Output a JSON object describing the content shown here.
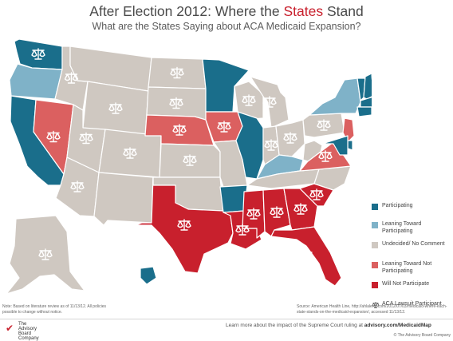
{
  "header": {
    "title_prefix": "After Election 2012: Where the ",
    "title_highlight": "States",
    "title_suffix": " Stand",
    "subtitle": "What are the States Saying about ACA Medicaid Expansion?"
  },
  "colors": {
    "participating": "#1a6e8b",
    "leaning_participating": "#7fb2c8",
    "undecided": "#cfc8c1",
    "leaning_not": "#db6060",
    "will_not": "#c8202d",
    "title_accent": "#c8202d"
  },
  "legend": [
    {
      "key": "participating",
      "label": "Participating"
    },
    {
      "key": "leaning_participating",
      "label": "Leaning Toward Participating"
    },
    {
      "key": "undecided",
      "label": "Undecided/ No Comment"
    },
    {
      "key": "leaning_not",
      "label": "Leaning Toward Not Participating"
    },
    {
      "key": "will_not",
      "label": "Will Not Participate"
    }
  ],
  "legend_lawsuit": {
    "icon": "scales-icon",
    "label": "ACA Lawsuit Participant"
  },
  "map": {
    "type": "choropleth",
    "regions": [
      {
        "name": "WA",
        "status": "participating",
        "lawsuit": true
      },
      {
        "name": "OR",
        "status": "leaning_participating",
        "lawsuit": false
      },
      {
        "name": "CA",
        "status": "participating",
        "lawsuit": false
      },
      {
        "name": "NV",
        "status": "leaning_not",
        "lawsuit": true
      },
      {
        "name": "ID",
        "status": "undecided",
        "lawsuit": true
      },
      {
        "name": "MT",
        "status": "undecided",
        "lawsuit": false
      },
      {
        "name": "WY",
        "status": "undecided",
        "lawsuit": true
      },
      {
        "name": "UT",
        "status": "undecided",
        "lawsuit": true
      },
      {
        "name": "AZ",
        "status": "undecided",
        "lawsuit": true
      },
      {
        "name": "CO",
        "status": "undecided",
        "lawsuit": true
      },
      {
        "name": "NM",
        "status": "undecided",
        "lawsuit": false
      },
      {
        "name": "ND",
        "status": "undecided",
        "lawsuit": true
      },
      {
        "name": "SD",
        "status": "undecided",
        "lawsuit": true
      },
      {
        "name": "NE",
        "status": "leaning_not",
        "lawsuit": true
      },
      {
        "name": "KS",
        "status": "undecided",
        "lawsuit": true
      },
      {
        "name": "OK",
        "status": "undecided",
        "lawsuit": false
      },
      {
        "name": "TX",
        "status": "will_not",
        "lawsuit": true
      },
      {
        "name": "MN",
        "status": "participating",
        "lawsuit": false
      },
      {
        "name": "IA",
        "status": "leaning_not",
        "lawsuit": true
      },
      {
        "name": "MO",
        "status": "undecided",
        "lawsuit": false
      },
      {
        "name": "AR",
        "status": "participating",
        "lawsuit": false
      },
      {
        "name": "LA",
        "status": "will_not",
        "lawsuit": true
      },
      {
        "name": "WI",
        "status": "undecided",
        "lawsuit": true
      },
      {
        "name": "IL",
        "status": "participating",
        "lawsuit": false
      },
      {
        "name": "MI",
        "status": "undecided",
        "lawsuit": true
      },
      {
        "name": "IN",
        "status": "undecided",
        "lawsuit": true
      },
      {
        "name": "OH",
        "status": "undecided",
        "lawsuit": true
      },
      {
        "name": "KY",
        "status": "leaning_participating",
        "lawsuit": false
      },
      {
        "name": "TN",
        "status": "undecided",
        "lawsuit": false
      },
      {
        "name": "MS",
        "status": "will_not",
        "lawsuit": true
      },
      {
        "name": "AL",
        "status": "will_not",
        "lawsuit": true
      },
      {
        "name": "GA",
        "status": "will_not",
        "lawsuit": true
      },
      {
        "name": "FL",
        "status": "will_not",
        "lawsuit": true
      },
      {
        "name": "SC",
        "status": "will_not",
        "lawsuit": true
      },
      {
        "name": "NC",
        "status": "undecided",
        "lawsuit": false
      },
      {
        "name": "VA",
        "status": "leaning_not",
        "lawsuit": true
      },
      {
        "name": "WV",
        "status": "undecided",
        "lawsuit": false
      },
      {
        "name": "PA",
        "status": "undecided",
        "lawsuit": true
      },
      {
        "name": "NY",
        "status": "leaning_participating",
        "lawsuit": false
      },
      {
        "name": "NJ",
        "status": "leaning_not",
        "lawsuit": false
      },
      {
        "name": "DE",
        "status": "participating",
        "lawsuit": false
      },
      {
        "name": "MD",
        "status": "participating",
        "lawsuit": false
      },
      {
        "name": "VT",
        "status": "participating",
        "lawsuit": false
      },
      {
        "name": "NH",
        "status": "participating",
        "lawsuit": false
      },
      {
        "name": "ME",
        "status": "leaning_not",
        "lawsuit": true
      },
      {
        "name": "MA",
        "status": "participating",
        "lawsuit": false
      },
      {
        "name": "CT",
        "status": "participating",
        "lawsuit": false
      },
      {
        "name": "AK",
        "status": "undecided",
        "lawsuit": true
      },
      {
        "name": "HI",
        "status": "participating",
        "lawsuit": false
      }
    ]
  },
  "note": "Note: Based on literature review as of 11/13/12. All policies possible to change without notice.",
  "source": "Source: American Health Line, http://ahlalerts.com/2012/07/03/medicaid-where-each-state-stands-on-the-medicaid-expansion/, accessed 11/13/12.",
  "footer": {
    "learn_prefix": "Learn more about the impact of the Supreme Court ruling at ",
    "learn_link": "advisory.com/MedicaidMap",
    "copyright": "© The Advisory Board Company",
    "logo_text": "The\nAdvisory\nBoard\nCompany"
  }
}
